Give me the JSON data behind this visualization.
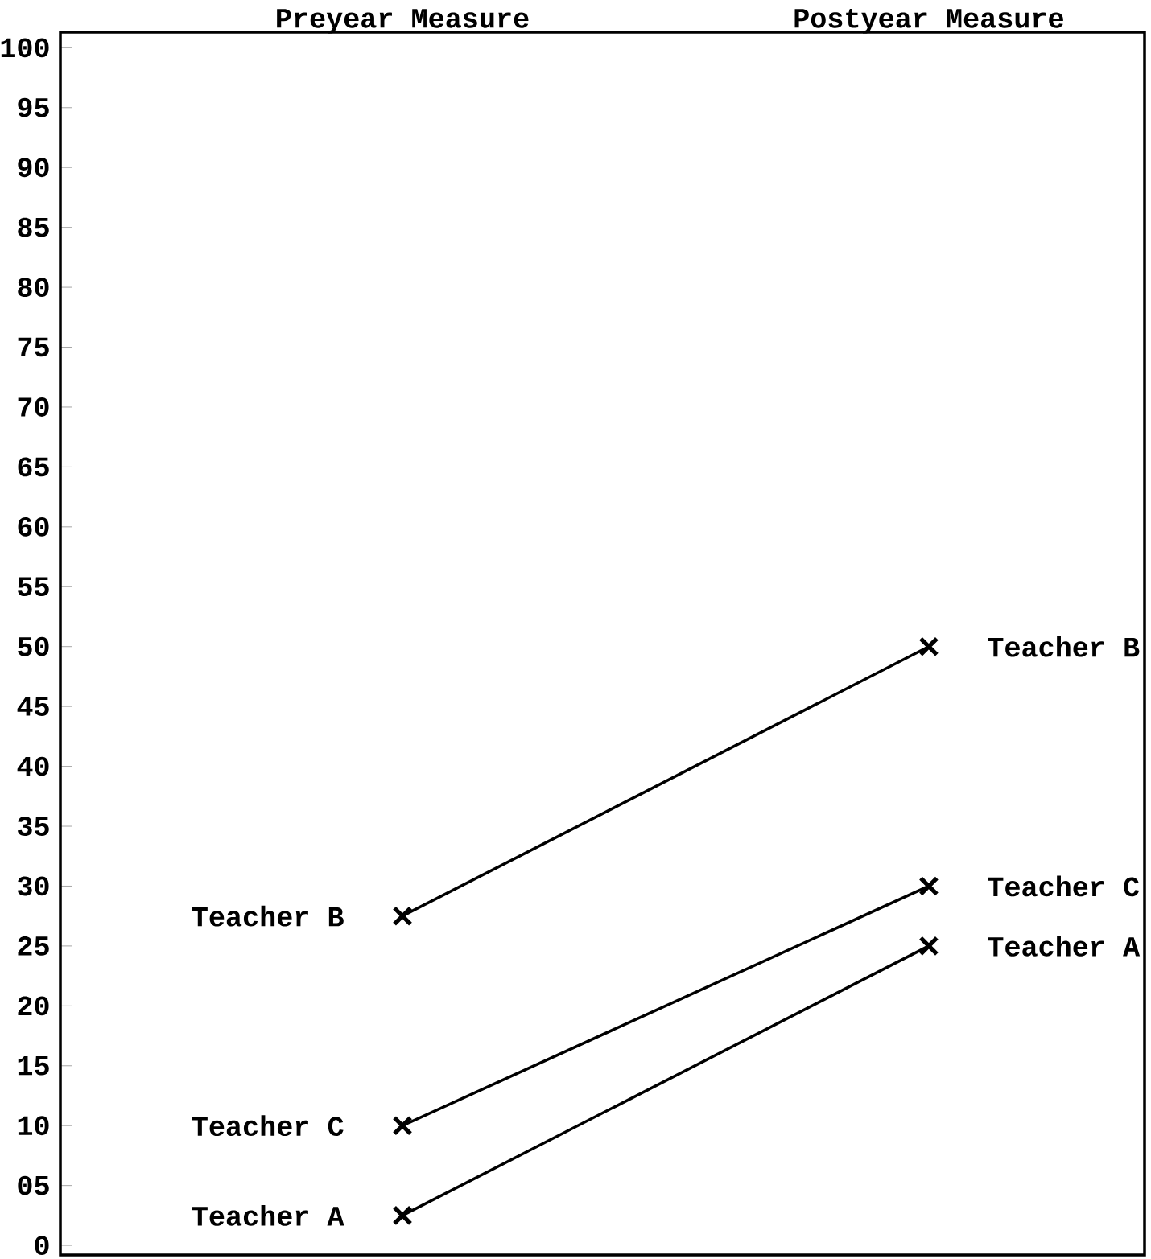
{
  "chart_data": {
    "type": "line",
    "categories": [
      "Preyear Measure",
      "Postyear Measure"
    ],
    "series": [
      {
        "name": "Teacher A",
        "color": "#000000",
        "values": [
          2.5,
          25
        ]
      },
      {
        "name": "Teacher B",
        "color": "#000000",
        "values": [
          27.5,
          50
        ]
      },
      {
        "name": "Teacher C",
        "color": "#000000",
        "values": [
          10,
          30
        ]
      }
    ],
    "ylim": [
      -0.8,
      101.3
    ],
    "yticks": [
      0,
      {
        "value": 5,
        "label": "05"
      },
      10,
      15,
      20,
      25,
      30,
      35,
      40,
      45,
      50,
      55,
      60,
      65,
      70,
      75,
      80,
      85,
      90,
      95,
      100
    ],
    "marker": "cross",
    "line_style": "solid",
    "legend": false,
    "grid": false
  }
}
